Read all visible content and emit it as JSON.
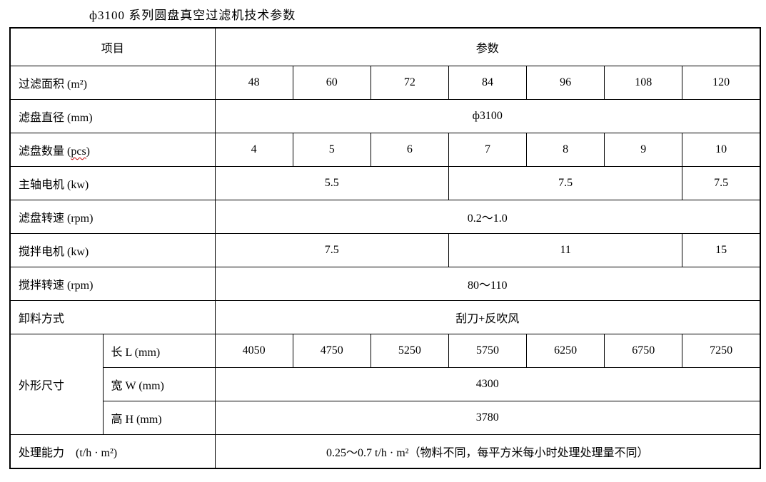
{
  "title": "ф3100 系列圆盘真空过滤机技术参数",
  "colors": {
    "border": "#000000",
    "text": "#000000",
    "spellcheck_underline": "#c00000",
    "background": "#ffffff"
  },
  "table": {
    "columns": {
      "label_col_width": 130,
      "sublabel_col_width": 157,
      "data_col_count": 7
    },
    "rows": [
      {
        "name": "header-row",
        "cells": [
          {
            "t": "项目",
            "cs": 2,
            "cls": "head"
          },
          {
            "t": "参数",
            "cs": 7,
            "cls": "head"
          }
        ]
      },
      {
        "name": "row-filter-area",
        "cells": [
          {
            "t": "过滤面积 (m²)",
            "cs": 2,
            "cls": "label"
          },
          {
            "t": "48"
          },
          {
            "t": "60"
          },
          {
            "t": "72"
          },
          {
            "t": "84"
          },
          {
            "t": "96"
          },
          {
            "t": "108"
          },
          {
            "t": "120"
          }
        ]
      },
      {
        "name": "row-disc-diameter",
        "cells": [
          {
            "t": "滤盘直径 (mm)",
            "cs": 2,
            "cls": "label"
          },
          {
            "t": "ф3100",
            "cs": 7
          }
        ]
      },
      {
        "name": "row-disc-count",
        "cells": [
          {
            "parts": [
              {
                "t": "滤盘数量 ("
              },
              {
                "t": "pcs",
                "wavy": true
              },
              {
                "t": ")"
              }
            ],
            "cs": 2,
            "cls": "label"
          },
          {
            "t": "4"
          },
          {
            "t": "5"
          },
          {
            "t": "6"
          },
          {
            "t": "7"
          },
          {
            "t": "8"
          },
          {
            "t": "9"
          },
          {
            "t": "10"
          }
        ]
      },
      {
        "name": "row-main-shaft-motor",
        "cells": [
          {
            "t": "主轴电机 (kw)",
            "cs": 2,
            "cls": "label"
          },
          {
            "t": "5.5",
            "cs": 3
          },
          {
            "t": "7.5",
            "cs": 3
          },
          {
            "t": "7.5"
          }
        ]
      },
      {
        "name": "row-disc-speed",
        "cells": [
          {
            "t": "滤盘转速 (rpm)",
            "cs": 2,
            "cls": "label"
          },
          {
            "t": "0.2～1.0",
            "cs": 7
          }
        ]
      },
      {
        "name": "row-agitator-motor",
        "cells": [
          {
            "t": "搅拌电机 (kw)",
            "cs": 2,
            "cls": "label"
          },
          {
            "t": "7.5",
            "cs": 3
          },
          {
            "t": "11",
            "cs": 3
          },
          {
            "t": "15"
          }
        ]
      },
      {
        "name": "row-agitator-speed",
        "cells": [
          {
            "t": "搅拌转速 (rpm)",
            "cs": 2,
            "cls": "label"
          },
          {
            "t": "80～110",
            "cs": 7
          }
        ]
      },
      {
        "name": "row-discharge-mode",
        "cells": [
          {
            "t": "卸料方式",
            "cs": 2,
            "cls": "label"
          },
          {
            "t": "刮刀+反吹风",
            "cs": 7
          }
        ]
      },
      {
        "name": "row-dimensions-length",
        "cells": [
          {
            "t": "外形尺寸",
            "rs": 3,
            "cls": "label"
          },
          {
            "t": "长 L (mm)",
            "cls": "label"
          },
          {
            "t": "4050"
          },
          {
            "t": "4750"
          },
          {
            "t": "5250"
          },
          {
            "t": "5750"
          },
          {
            "t": "6250"
          },
          {
            "t": "6750"
          },
          {
            "t": "7250"
          }
        ]
      },
      {
        "name": "row-dimensions-width",
        "cells": [
          {
            "t": "宽 W (mm)",
            "cls": "label"
          },
          {
            "t": "4300",
            "cs": 7
          }
        ]
      },
      {
        "name": "row-dimensions-height",
        "cells": [
          {
            "t": "高 H (mm)",
            "cls": "label"
          },
          {
            "t": "3780",
            "cs": 7
          }
        ]
      },
      {
        "name": "row-capacity",
        "cells": [
          {
            "t": "处理能力　(t/h · m²)",
            "cs": 2,
            "cls": "label"
          },
          {
            "t": "0.25～0.7 t/h · m²（物料不同，每平方米每小时处理处理量不同）",
            "cs": 7
          }
        ]
      }
    ]
  }
}
